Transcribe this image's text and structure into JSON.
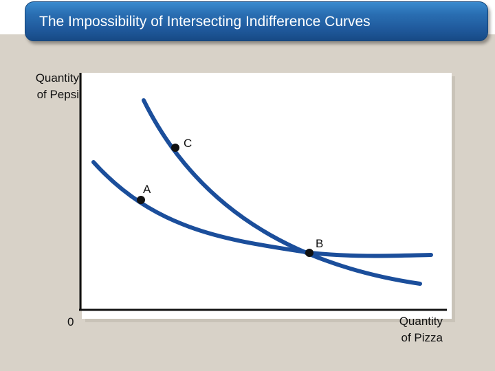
{
  "title": "The Impossibility of Intersecting Indifference Curves",
  "axes": {
    "y_label_line1": "Quantity",
    "y_label_line2": "of Pepsi",
    "x_label_line1": "Quantity",
    "x_label_line2": "of Pizza",
    "origin": "0"
  },
  "points": {
    "a": "A",
    "b": "B",
    "c": "C"
  },
  "colors": {
    "curve": "#1b4e9b",
    "title_bar": "#1e5799",
    "background": "#d8d2c8"
  }
}
